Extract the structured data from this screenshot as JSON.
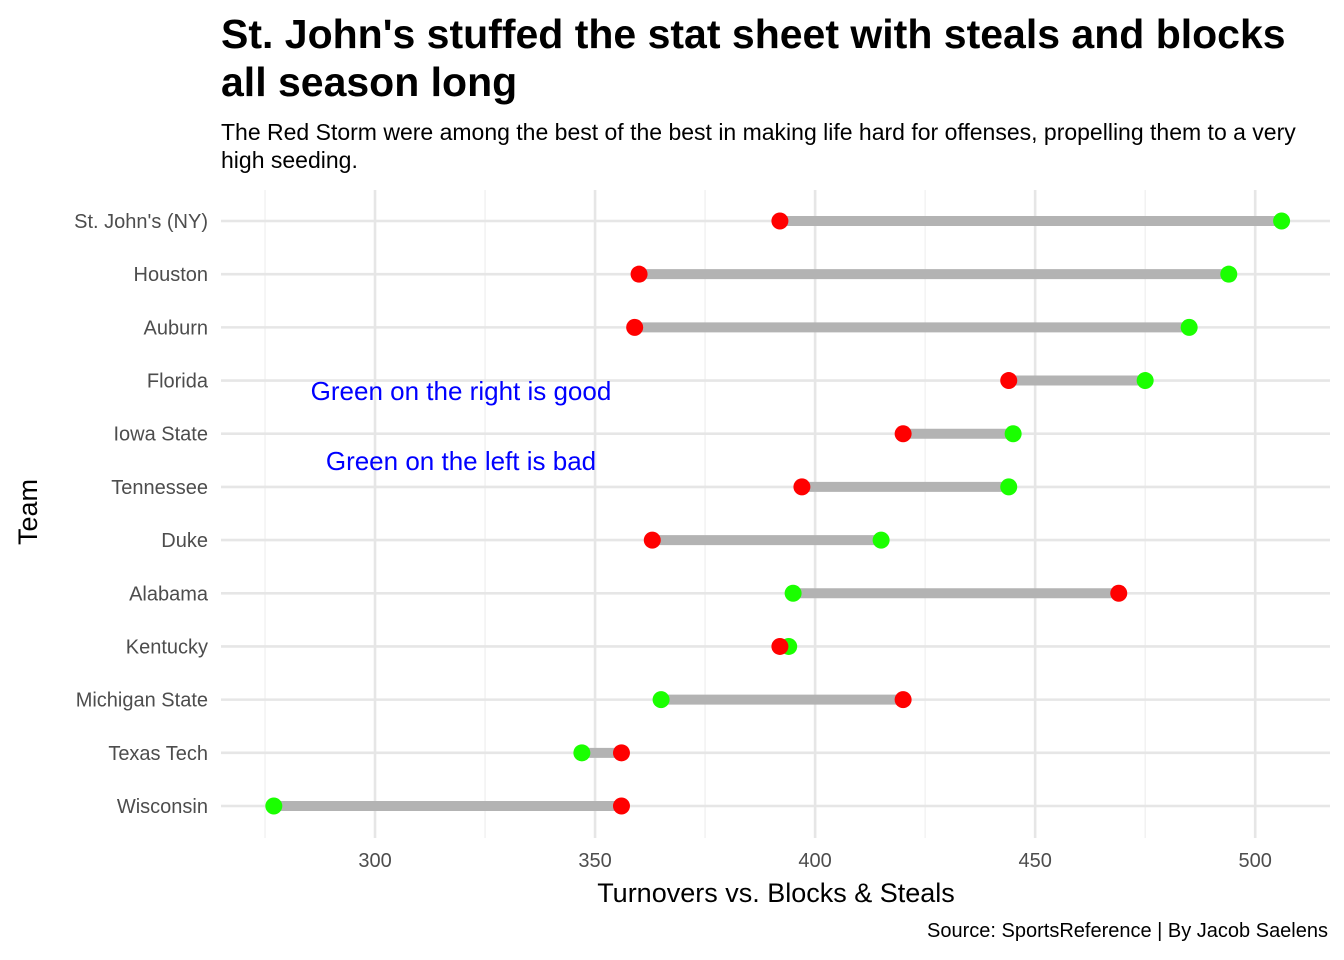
{
  "title": "St. John's stuffed the stat sheet with steals and blocks all season long",
  "subtitle": "The Red Storm were among the best of the best in making life hard for offenses, propelling them to a very high seeding.",
  "caption": "Source: SportsReference | By Jacob Saelens",
  "chart_data": {
    "type": "dumbbell",
    "xlabel": "Turnovers vs. Blocks & Steals",
    "ylabel": "Team",
    "xlim": [
      265,
      517
    ],
    "xticks": [
      300,
      350,
      400,
      450,
      500
    ],
    "grid": true,
    "colors": {
      "turnovers": "#ff0000",
      "blocks_steals": "#1aff00",
      "connector": "#b3b3b3"
    },
    "annotations": [
      "Green on the right is good",
      "Green on the left is bad"
    ],
    "teams": [
      "St. John's (NY)",
      "Houston",
      "Auburn",
      "Florida",
      "Iowa State",
      "Tennessee",
      "Duke",
      "Alabama",
      "Kentucky",
      "Michigan State",
      "Texas Tech",
      "Wisconsin"
    ],
    "series": [
      {
        "key": "turnovers",
        "values": [
          392,
          360,
          359,
          444,
          420,
          397,
          363,
          469,
          392,
          420,
          356,
          356
        ]
      },
      {
        "key": "blocks_steals",
        "values": [
          506,
          494,
          485,
          475,
          445,
          444,
          415,
          395,
          394,
          365,
          347,
          277
        ]
      }
    ]
  }
}
